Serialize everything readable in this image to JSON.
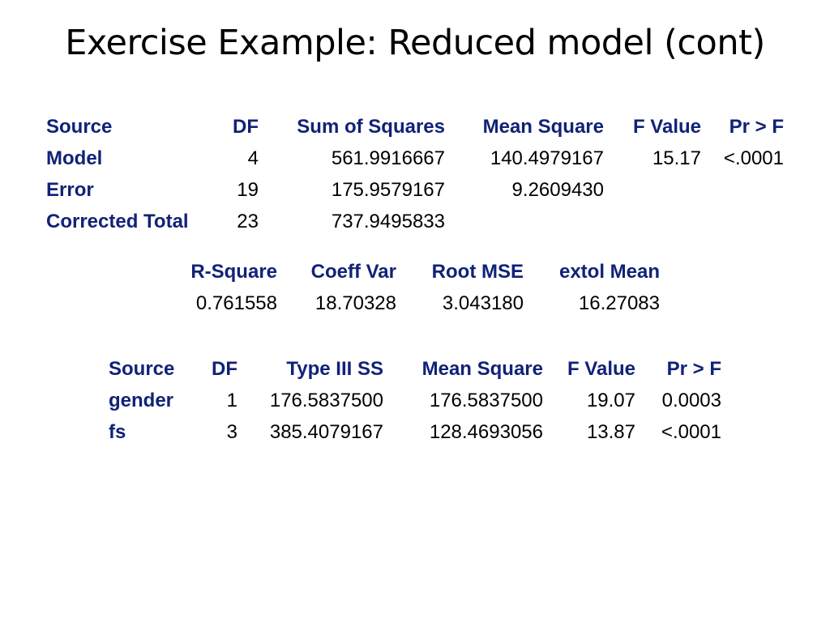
{
  "slide": {
    "title": "Exercise Example: Reduced model (cont)"
  },
  "anova": {
    "headers": [
      "Source",
      "DF",
      "Sum of Squares",
      "Mean Square",
      "F Value",
      "Pr > F"
    ],
    "rows": [
      {
        "source": "Model",
        "df": "4",
        "ss": "561.9916667",
        "ms": "140.4979167",
        "f": "15.17",
        "p": "<.0001"
      },
      {
        "source": "Error",
        "df": "19",
        "ss": "175.9579167",
        "ms": "9.2609430",
        "f": "",
        "p": ""
      },
      {
        "source": "Corrected Total",
        "df": "23",
        "ss": "737.9495833",
        "ms": "",
        "f": "",
        "p": ""
      }
    ]
  },
  "fit": {
    "headers": [
      "R-Square",
      "Coeff Var",
      "Root MSE",
      "extol Mean"
    ],
    "values": [
      "0.761558",
      "18.70328",
      "3.043180",
      "16.27083"
    ]
  },
  "type3": {
    "headers": [
      "Source",
      "DF",
      "Type III SS",
      "Mean Square",
      "F Value",
      "Pr > F"
    ],
    "rows": [
      {
        "source": "gender",
        "df": "1",
        "ss": "176.5837500",
        "ms": "176.5837500",
        "f": "19.07",
        "p": "0.0003"
      },
      {
        "source": "fs",
        "df": "3",
        "ss": "385.4079167",
        "ms": "128.4693056",
        "f": "13.87",
        "p": "<.0001"
      }
    ]
  }
}
